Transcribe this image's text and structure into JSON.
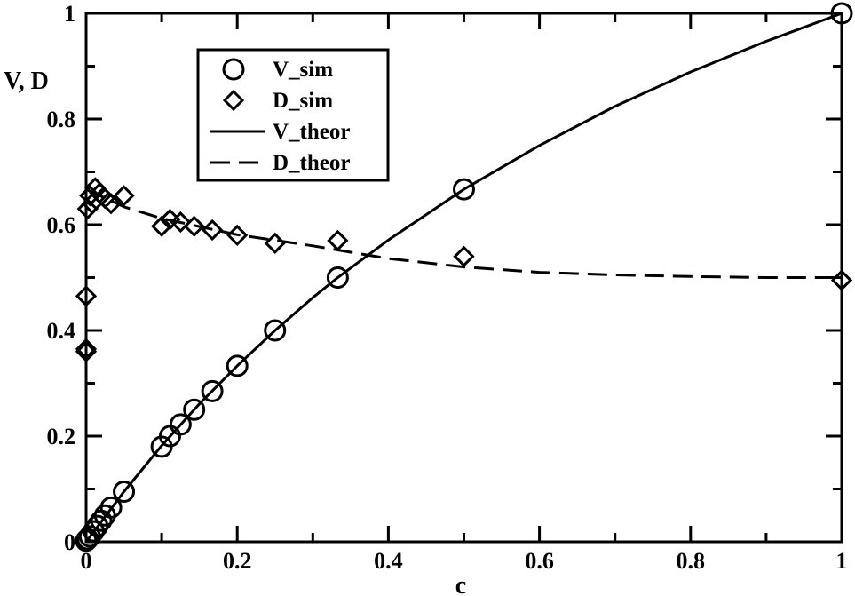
{
  "chart_data": {
    "type": "scatter",
    "title": "",
    "xlabel": "c",
    "ylabel": "V, D",
    "xlim": [
      0,
      1
    ],
    "ylim": [
      0,
      1
    ],
    "x_ticks": [
      "0",
      "0.2",
      "0.4",
      "0.6",
      "0.8",
      "1"
    ],
    "y_ticks": [
      "0",
      "0.2",
      "0.4",
      "0.6",
      "0.8",
      "1"
    ],
    "grid": false,
    "legend_position": "top-left",
    "series": [
      {
        "name": "V_sim",
        "kind": "markers",
        "marker": "circle",
        "x": [
          0,
          0.002,
          0.005,
          0.01,
          0.015,
          0.02,
          0.025,
          0.033,
          0.05,
          0.1,
          0.111,
          0.125,
          0.143,
          0.167,
          0.2,
          0.25,
          0.333,
          0.5,
          1
        ],
        "y": [
          0.002,
          0.005,
          0.01,
          0.02,
          0.03,
          0.04,
          0.05,
          0.065,
          0.095,
          0.18,
          0.2,
          0.222,
          0.25,
          0.285,
          0.333,
          0.4,
          0.5,
          0.667,
          1
        ]
      },
      {
        "name": "D_sim",
        "kind": "markers",
        "marker": "diamond",
        "x": [
          0,
          0,
          0,
          0.002,
          0.005,
          0.008,
          0.012,
          0.018,
          0.025,
          0.033,
          0.05,
          0.1,
          0.111,
          0.125,
          0.143,
          0.167,
          0.2,
          0.25,
          0.333,
          0.5,
          1
        ],
        "y": [
          0.36,
          0.365,
          0.465,
          0.63,
          0.655,
          0.64,
          0.67,
          0.66,
          0.65,
          0.64,
          0.655,
          0.597,
          0.61,
          0.605,
          0.597,
          0.59,
          0.58,
          0.565,
          0.57,
          0.54,
          0.495
        ]
      },
      {
        "name": "V_theor",
        "kind": "line",
        "dash": "solid",
        "x": [
          0,
          0.05,
          0.1,
          0.15,
          0.2,
          0.25,
          0.3,
          0.333,
          0.4,
          0.5,
          0.6,
          0.7,
          0.8,
          0.9,
          1
        ],
        "y": [
          0,
          0.095,
          0.182,
          0.261,
          0.333,
          0.4,
          0.462,
          0.5,
          0.571,
          0.667,
          0.75,
          0.824,
          0.889,
          0.947,
          1
        ]
      },
      {
        "name": "D_theor",
        "kind": "line",
        "dash": "dashed",
        "x": [
          0,
          0.05,
          0.1,
          0.2,
          0.3,
          0.4,
          0.5,
          0.6,
          0.7,
          0.8,
          0.9,
          1
        ],
        "y": [
          0.667,
          0.634,
          0.612,
          0.581,
          0.56,
          0.536,
          0.52,
          0.51,
          0.505,
          0.502,
          0.5,
          0.5
        ]
      }
    ]
  }
}
